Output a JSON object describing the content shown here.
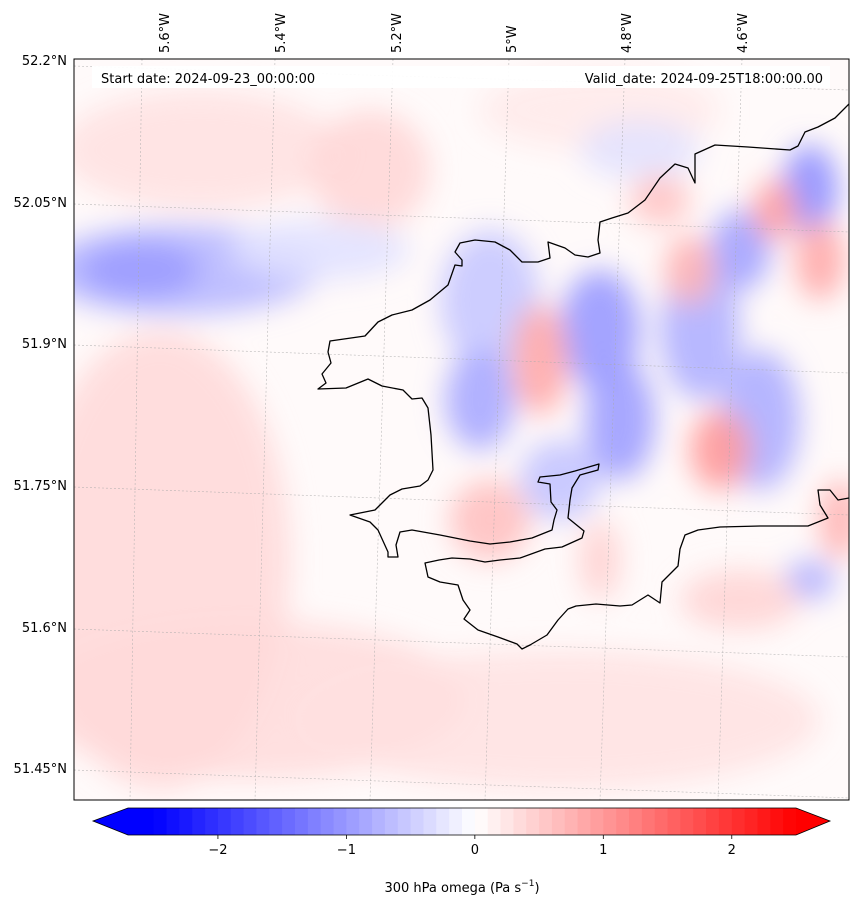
{
  "map": {
    "start_date_label": "Start date: 2024-09-23_00:00:00",
    "valid_date_label": "Valid_date: 2024-09-25T18:00:00.00",
    "lat_labels": [
      "52.2°N",
      "52.05°N",
      "51.9°N",
      "51.75°N",
      "51.6°N",
      "51.45°N"
    ],
    "lon_labels": [
      "5.6°W",
      "5.4°W",
      "5.2°W",
      "5°W",
      "4.8°W",
      "4.6°W"
    ],
    "field": "300 hPa omega",
    "colormap": "bwr",
    "coastline_color": "#000000"
  },
  "colorbar": {
    "label": "300 hPa omega (Pa s",
    "label_sup": "−1",
    "label_tail": ")",
    "ticks": [
      "−2",
      "−1",
      "0",
      "1",
      "2"
    ],
    "tick_values": [
      -2,
      -1,
      0,
      1,
      2
    ],
    "range": [
      -2.7,
      2.5
    ],
    "extend": "both",
    "colors": {
      "min": "#0000ff",
      "mid": "#ffffff",
      "max": "#ff0000"
    }
  }
}
